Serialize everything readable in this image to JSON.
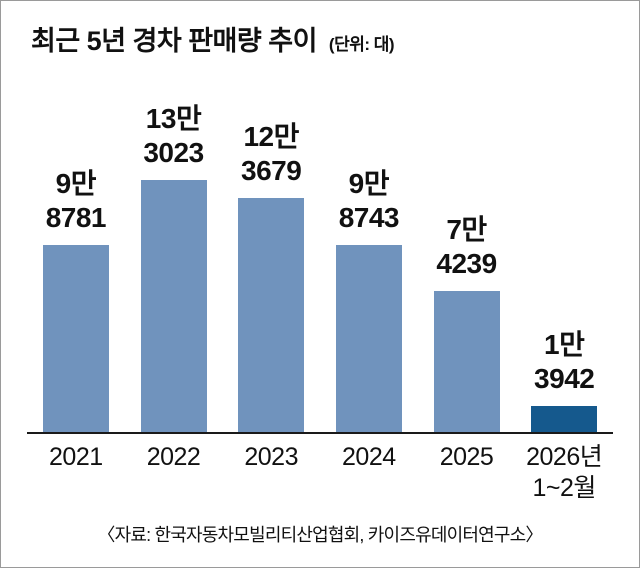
{
  "header": {
    "title": "최근 5년 경차 판매량 추이",
    "unit": "(단위: 대)"
  },
  "chart_data": {
    "type": "bar",
    "title": "최근 5년 경차 판매량 추이",
    "unit_label": "(단위: 대)",
    "categories": [
      "2021",
      "2022",
      "2023",
      "2024",
      "2025",
      "2026년 1~2월"
    ],
    "category_lines": [
      [
        "2021"
      ],
      [
        "2022"
      ],
      [
        "2023"
      ],
      [
        "2024"
      ],
      [
        "2025"
      ],
      [
        "2026년",
        "1~2월"
      ]
    ],
    "values": [
      98781,
      133023,
      123679,
      98743,
      74239,
      13942
    ],
    "value_labels": [
      [
        "9만",
        "8781"
      ],
      [
        "13만",
        "3023"
      ],
      [
        "12만",
        "3679"
      ],
      [
        "9만",
        "8743"
      ],
      [
        "7만",
        "4239"
      ],
      [
        "1만",
        "3942"
      ]
    ],
    "bar_colors": [
      "#7093bd",
      "#7093bd",
      "#7093bd",
      "#7093bd",
      "#7093bd",
      "#15598d"
    ],
    "xlabel": "",
    "ylabel": "",
    "ylim": [
      0,
      135000
    ],
    "grid": false,
    "legend": "none"
  },
  "footer": {
    "source": "〈자료: 한국자동차모빌리티산업협회, 카이즈유데이터연구소〉"
  }
}
